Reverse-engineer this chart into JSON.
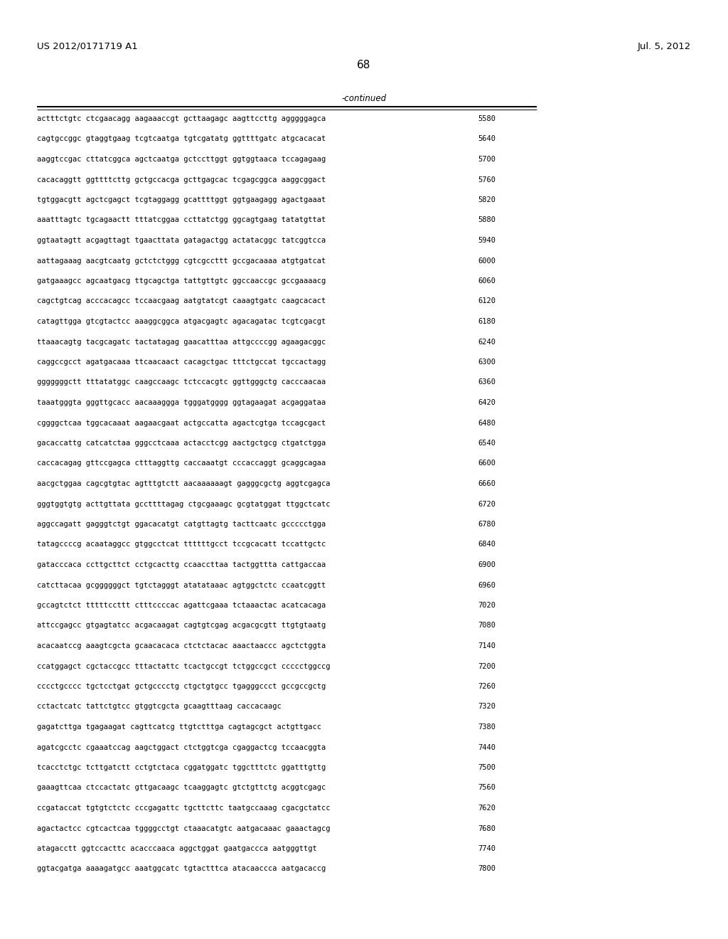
{
  "header_left": "US 2012/0171719 A1",
  "header_right": "Jul. 5, 2012",
  "page_number": "68",
  "continued_label": "-continued",
  "background_color": "#ffffff",
  "text_color": "#000000",
  "font_size_header": 9.5,
  "font_size_page": 11,
  "font_size_seq": 7.5,
  "font_size_continued": 8.5,
  "sequence_data": [
    [
      "actttctgtc ctcgaacagg aagaaaccgt gcttaagagc aagttccttg agggggagca",
      "5580"
    ],
    [
      "cagtgccggc gtaggtgaag tcgtcaatga tgtcgatatg ggttttgatc atgcacacat",
      "5640"
    ],
    [
      "aaggtccgac cttatcggca agctcaatga gctccttggt ggtggtaaca tccagagaag",
      "5700"
    ],
    [
      "cacacaggtt ggttttcttg gctgccacga gcttgagcac tcgagcggca aaggcggact",
      "5760"
    ],
    [
      "tgtggacgtt agctcgagct tcgtaggagg gcattttggt ggtgaagagg agactgaaat",
      "5820"
    ],
    [
      "aaatttagtc tgcagaactt tttatcggaa ccttatctgg ggcagtgaag tatatgttat",
      "5880"
    ],
    [
      "ggtaatagtt acgagttagt tgaacttata gatagactgg actatacggc tatcggtcca",
      "5940"
    ],
    [
      "aattagaaag aacgtcaatg gctctctggg cgtcgccttt gccgacaaaa atgtgatcat",
      "6000"
    ],
    [
      "gatgaaagcc agcaatgacg ttgcagctga tattgttgtc ggccaaccgc gccgaaaacg",
      "6060"
    ],
    [
      "cagctgtcag acccacagcc tccaacgaag aatgtatcgt caaagtgatc caagcacact",
      "6120"
    ],
    [
      "catagttgga gtcgtactcc aaaggcggca atgacgagtc agacagatac tcgtcgacgt",
      "6180"
    ],
    [
      "ttaaacagtg tacgcagatc tactatagag gaacatttaa attgccccgg agaagacggc",
      "6240"
    ],
    [
      "caggccgcct agatgacaaa ttcaacaact cacagctgac tttctgccat tgccactagg",
      "6300"
    ],
    [
      "gggggggctt tttatatggc caagccaagc tctccacgtc ggttgggctg cacccaacaa",
      "6360"
    ],
    [
      "taaatgggta gggttgcacc aacaaaggga tgggatgggg ggtagaagat acgaggataa",
      "6420"
    ],
    [
      "cggggctcaa tggcacaaat aagaacgaat actgccatta agactcgtga tccagcgact",
      "6480"
    ],
    [
      "gacaccattg catcatctaa gggcctcaaa actacctcgg aactgctgcg ctgatctgga",
      "6540"
    ],
    [
      "caccacagag gttccgagca ctttaggttg caccaaatgt cccaccaggt gcaggcagaa",
      "6600"
    ],
    [
      "aacgctggaa cagcgtgtac agtttgtctt aacaaaaaagt gagggcgctg aggtcgagca",
      "6660"
    ],
    [
      "gggtggtgtg acttgttata gccttttagag ctgcgaaagc gcgtatggat ttggctcatc",
      "6720"
    ],
    [
      "aggccagatt gagggtctgt ggacacatgt catgttagtg tacttcaatc gccccctgga",
      "6780"
    ],
    [
      "tatagccccg acaataggcc gtggcctcat ttttttgcct tccgcacatt tccattgctc",
      "6840"
    ],
    [
      "gatacccaca ccttgcttct cctgcacttg ccaaccttaa tactggttta cattgaccaa",
      "6900"
    ],
    [
      "catcttacaa gcggggggct tgtctagggt atatataaac agtggctctc ccaatcggtt",
      "6960"
    ],
    [
      "gccagtctct tttttccttt ctttccccac agattcgaaa tctaaactac acatcacaga",
      "7020"
    ],
    [
      "attccgagcc gtgagtatcc acgacaagat cagtgtcgag acgacgcgtt ttgtgtaatg",
      "7080"
    ],
    [
      "acacaatccg aaagtcgcta gcaacacaca ctctctacac aaactaaccc agctctggta",
      "7140"
    ],
    [
      "ccatggagct cgctaccgcc tttactattc tcactgccgt tctggccgct ccccctggccg",
      "7200"
    ],
    [
      "cccctgcccc tgctcctgat gctgcccctg ctgctgtgcc tgagggccct gccgccgctg",
      "7260"
    ],
    [
      "cctactcatc tattctgtcc gtggtcgcta gcaagtttaag caccacaagc",
      "7320"
    ],
    [
      "gagatcttga tgagaagat cagttcatcg ttgtctttga cagtagcgct actgttgacc",
      "7380"
    ],
    [
      "agatcgcctc cgaaatccag aagctggact ctctggtcga cgaggactcg tccaacggta",
      "7440"
    ],
    [
      "tcacctctgc tcttgatctt cctgtctaca cggatggatc tggctttctc ggatttgttg",
      "7500"
    ],
    [
      "gaaagttcaa ctccactatc gttgacaagc tcaaggagtc gtctgttctg acggtcgagc",
      "7560"
    ],
    [
      "ccgataccat tgtgtctctc cccgagattc tgcttcttc taatgccaaag cgacgctatcc",
      "7620"
    ],
    [
      "agactactcc cgtcactcaa tggggcctgt ctaaacatgtc aatgacaaac gaaactagcg",
      "7680"
    ],
    [
      "atagacctt ggtccacttc acacccaaca aggctggat gaatgaccca aatgggttgt",
      "7740"
    ],
    [
      "ggtacgatga aaaagatgcc aaatggcatc tgtactttca atacaaccca aatgacaccg",
      "7800"
    ]
  ]
}
